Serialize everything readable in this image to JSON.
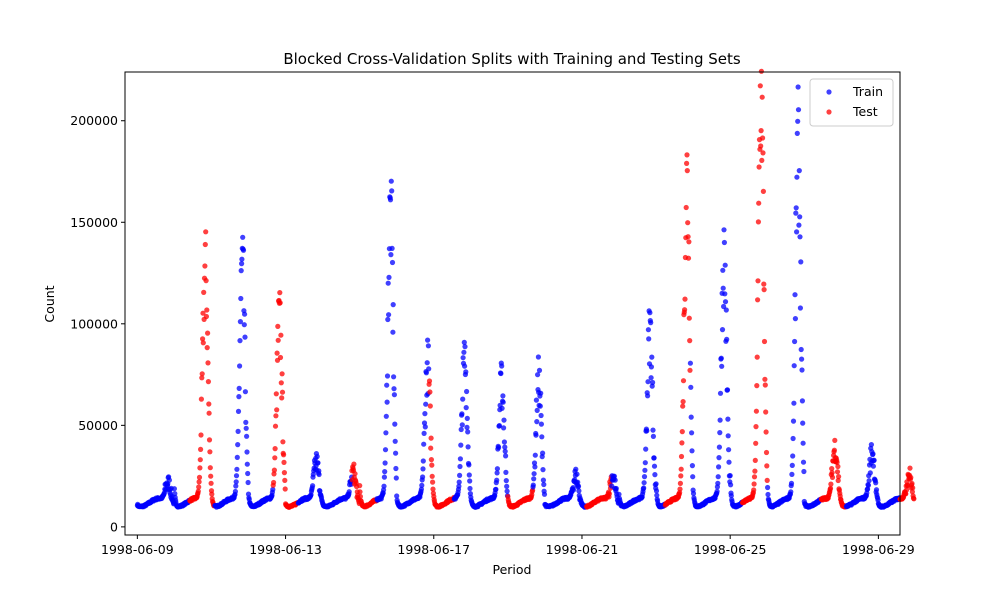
{
  "chart_data": {
    "type": "scatter",
    "title": "Blocked Cross-Validation Splits with Training and Testing Sets",
    "xlabel": "Period",
    "ylabel": "Count",
    "xlim": [
      "1998-06-08T16:00",
      "1998-06-29T14:00"
    ],
    "ylim": [
      -4000,
      224000
    ],
    "x_ticks": [
      "1998-06-09",
      "1998-06-13",
      "1998-06-17",
      "1998-06-21",
      "1998-06-25",
      "1998-06-29"
    ],
    "y_ticks": [
      0,
      50000,
      100000,
      150000,
      200000
    ],
    "y_tick_labels": [
      "0",
      "50000",
      "100000",
      "150000",
      "200000"
    ],
    "grid": false,
    "legend_position": "top-right",
    "series": [
      {
        "name": "Train",
        "color": "#0000ff"
      },
      {
        "name": "Test",
        "color": "#ff0000"
      }
    ],
    "test_blocks": [
      [
        "1998-06-10T10:00",
        "1998-06-11T02:00"
      ],
      [
        "1998-06-12T16:00",
        "1998-06-13T08:00"
      ],
      [
        "1998-06-14T19:00",
        "1998-06-15T11:00"
      ],
      [
        "1998-06-16T21:00",
        "1998-06-17T13:00"
      ],
      [
        "1998-06-19T00:00",
        "1998-06-19T16:00"
      ],
      [
        "1998-06-21T03:00",
        "1998-06-21T19:00"
      ],
      [
        "1998-06-23T06:00",
        "1998-06-23T22:00"
      ],
      [
        "1998-06-25T08:00",
        "1998-06-26T00:00"
      ],
      [
        "1998-06-27T11:00",
        "1998-06-28T03:00"
      ],
      [
        "1998-06-29T14:00",
        "1998-06-30T06:00"
      ]
    ],
    "start": "1998-06-09T00:00",
    "end": "1998-06-29T23:00",
    "base_level": 10000,
    "daily_peaks": [
      {
        "date": "1998-06-09",
        "peak": 20000
      },
      {
        "date": "1998-06-10",
        "peak": 125000
      },
      {
        "date": "1998-06-11",
        "peak": 125000
      },
      {
        "date": "1998-06-12",
        "peak": 100000
      },
      {
        "date": "1998-06-13",
        "peak": 30000
      },
      {
        "date": "1998-06-14",
        "peak": 25000
      },
      {
        "date": "1998-06-15",
        "peak": 152000
      },
      {
        "date": "1998-06-16",
        "peak": 78000
      },
      {
        "date": "1998-06-17",
        "peak": 80000
      },
      {
        "date": "1998-06-18",
        "peak": 68000
      },
      {
        "date": "1998-06-19",
        "peak": 70000
      },
      {
        "date": "1998-06-20",
        "peak": 23000
      },
      {
        "date": "1998-06-21",
        "peak": 23000
      },
      {
        "date": "1998-06-22",
        "peak": 95000
      },
      {
        "date": "1998-06-23",
        "peak": 168000
      },
      {
        "date": "1998-06-24",
        "peak": 130000
      },
      {
        "date": "1998-06-25",
        "peak": 212000
      },
      {
        "date": "1998-06-26",
        "peak": 183000
      },
      {
        "date": "1998-06-27",
        "peak": 37000
      },
      {
        "date": "1998-06-28",
        "peak": 35000
      },
      {
        "date": "1998-06-29",
        "peak": 24000
      }
    ],
    "peak_hour": 20
  }
}
